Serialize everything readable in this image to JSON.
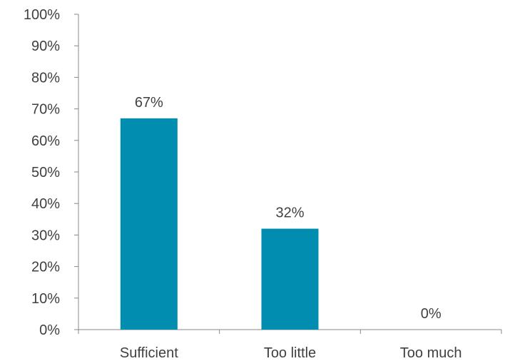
{
  "chart_data": {
    "type": "bar",
    "categories": [
      "Sufficient",
      "Too little",
      "Too much"
    ],
    "values": [
      67,
      32,
      0
    ],
    "data_labels": [
      "67%",
      "32%",
      "0%"
    ],
    "y_ticks": [
      "0%",
      "10%",
      "20%",
      "30%",
      "40%",
      "50%",
      "60%",
      "70%",
      "80%",
      "90%",
      "100%"
    ],
    "ylim": [
      0,
      100
    ],
    "title": "",
    "xlabel": "",
    "ylabel": "",
    "bar_color": "#008db0",
    "grid": false,
    "legend": "none"
  }
}
